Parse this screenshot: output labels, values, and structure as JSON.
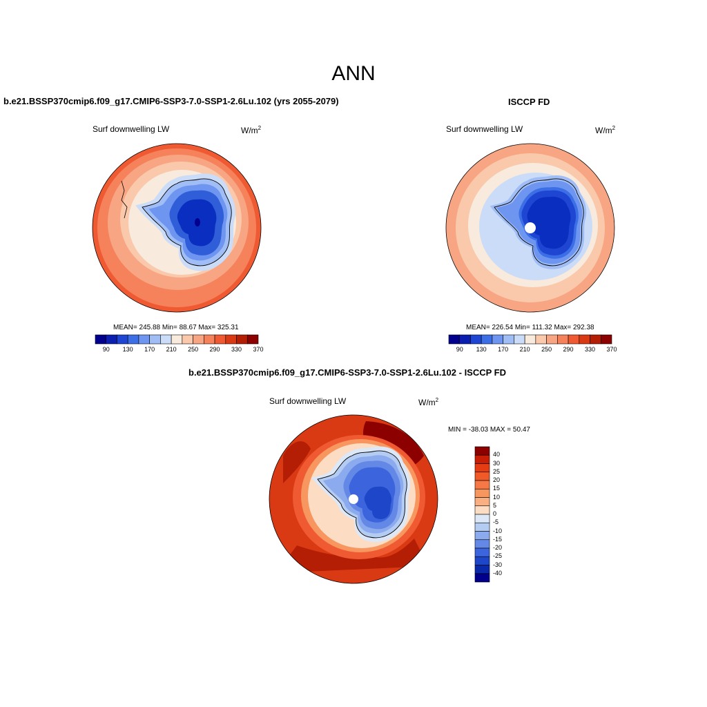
{
  "main_title": "ANN",
  "panels": [
    {
      "title": "b.e21.BSSP370cmip6.f09_g17.CMIP6-SSP3-7.0-SSP1-2.6Lu.102 (yrs 2055-2079)",
      "variable": "Surf downwelling LW",
      "units_base": "W/m",
      "units_exp": "2",
      "stats_text": "MEAN= 245.88  Min=  88.67  Max= 325.31",
      "stats": {
        "mean": 245.88,
        "min": 88.67,
        "max": 325.31
      }
    },
    {
      "title": "ISCCP FD",
      "variable": "Surf downwelling LW",
      "units_base": "W/m",
      "units_exp": "2",
      "stats_text": "MEAN= 226.54  Min= 111.32  Max= 292.38",
      "stats": {
        "mean": 226.54,
        "min": 111.32,
        "max": 292.38
      }
    },
    {
      "title": "b.e21.BSSP370cmip6.f09_g17.CMIP6-SSP3-7.0-SSP1-2.6Lu.102 - ISCCP FD",
      "variable": "Surf downwelling LW",
      "units_base": "W/m",
      "units_exp": "2",
      "stats_text": "MIN = -38.03 MAX =  50.47",
      "stats": {
        "min": -38.03,
        "max": 50.47
      }
    }
  ],
  "abs_colorbar": {
    "tick_labels": [
      "90",
      "130",
      "170",
      "210",
      "250",
      "290",
      "330",
      "370"
    ],
    "colors": [
      "#00008c",
      "#0a1fb0",
      "#1e46d2",
      "#3c6ee6",
      "#6e96f0",
      "#a0bef5",
      "#cbdcf8",
      "#f8eadc",
      "#fac8aa",
      "#f7a582",
      "#f5825a",
      "#f05a32",
      "#d93a14",
      "#b41e05",
      "#8c0000"
    ]
  },
  "diff_colorbar": {
    "tick_labels": [
      "40",
      "30",
      "25",
      "20",
      "15",
      "10",
      "5",
      "0",
      "-5",
      "-10",
      "-15",
      "-20",
      "-25",
      "-30",
      "-40"
    ],
    "colors": [
      "#8c0000",
      "#c81e05",
      "#e63c14",
      "#f05a28",
      "#f57846",
      "#f8965f",
      "#faaf82",
      "#fcdcc3",
      "#dce8f8",
      "#b4ccf2",
      "#8caaee",
      "#6488e6",
      "#3c64dc",
      "#1e46c8",
      "#0a28aa",
      "#00008c"
    ]
  },
  "map_field_colors": {
    "ice_deep": "#0a2ec0",
    "ice_mid": "#2f5ed8",
    "ice_light": "#6e96f0",
    "coast_pale": "#cbdcf8",
    "cream": "#f8eadc",
    "ocean_light": "#fac8aa",
    "ocean_mid": "#f7a582",
    "ocean_warm": "#f5825a",
    "ocean_hot": "#f05a32",
    "diff_red": "#d93a14",
    "diff_dark": "#b41e05",
    "diff_darkest": "#8c0000"
  }
}
